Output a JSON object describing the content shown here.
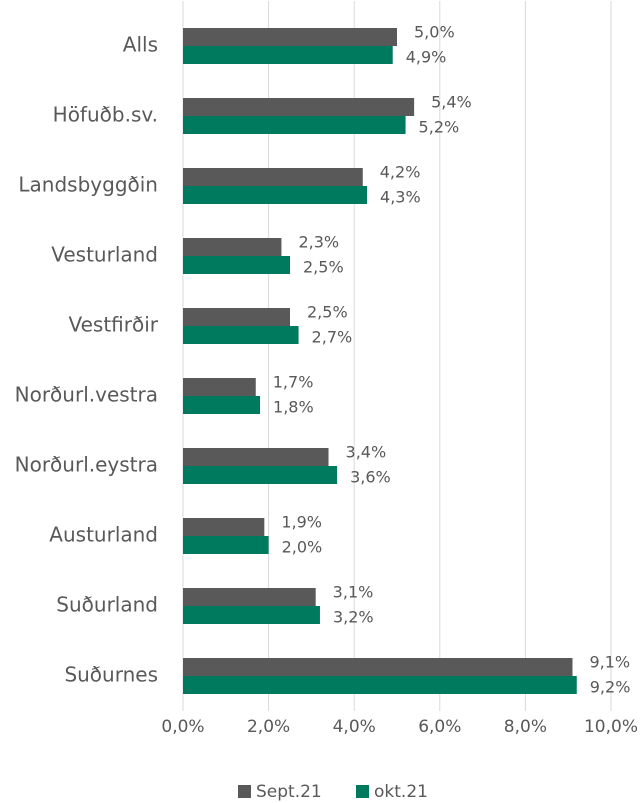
{
  "chart_data": {
    "type": "hbar",
    "categories": [
      "Alls",
      "Höfuðb.sv.",
      "Landsbyggðin",
      "Vesturland",
      "Vestfirðir",
      "Norðurl.vestra",
      "Norðurl.eystra",
      "Austurland",
      "Suðurland",
      "Suðurnes"
    ],
    "series": [
      {
        "name": "Sept.21",
        "color": "#595959",
        "values": [
          5.0,
          5.4,
          4.2,
          2.3,
          2.5,
          1.7,
          3.4,
          1.9,
          3.1,
          9.1
        ],
        "value_labels": [
          "5,0%",
          "5,4%",
          "4,2%",
          "2,3%",
          "2,5%",
          "1,7%",
          "3,4%",
          "1,9%",
          "3,1%",
          "9,1%"
        ]
      },
      {
        "name": "okt.21",
        "color": "#007a5e",
        "values": [
          4.9,
          5.2,
          4.3,
          2.5,
          2.7,
          1.8,
          3.6,
          2.0,
          3.2,
          9.2
        ],
        "value_labels": [
          "4,9%",
          "5,2%",
          "4,3%",
          "2,5%",
          "2,7%",
          "1,8%",
          "3,6%",
          "2,0%",
          "3,2%",
          "9,2%"
        ]
      }
    ],
    "xlim": [
      0,
      10
    ],
    "xticks": [
      {
        "value": 0,
        "label": "0,0%"
      },
      {
        "value": 2,
        "label": "2,0%"
      },
      {
        "value": 4,
        "label": "4,0%"
      },
      {
        "value": 6,
        "label": "6,0%"
      },
      {
        "value": 8,
        "label": "8,0%"
      },
      {
        "value": 10,
        "label": "10,0%"
      }
    ],
    "grid": true,
    "legend": "bottom"
  }
}
